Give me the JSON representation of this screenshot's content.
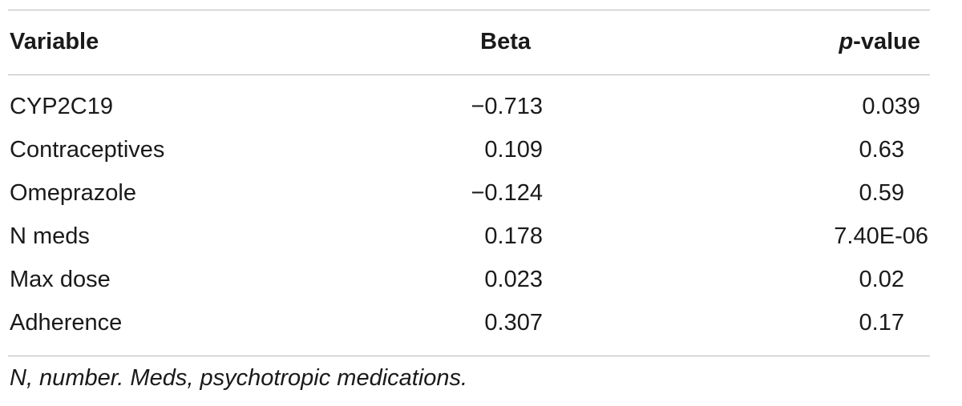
{
  "table": {
    "headers": {
      "variable": "Variable",
      "beta": "Beta",
      "pvalue_italic": "p",
      "pvalue_rest": "-value"
    },
    "rows": [
      {
        "variable": "CYP2C19",
        "beta": "−0.713",
        "pvalue": "0.039"
      },
      {
        "variable": "Contraceptives",
        "beta": "0.109",
        "pvalue": "0.63"
      },
      {
        "variable": "Omeprazole",
        "beta": "−0.124",
        "pvalue": "0.59"
      },
      {
        "variable": "N meds",
        "beta": "0.178",
        "pvalue": "7.40E-06"
      },
      {
        "variable": "Max dose",
        "beta": "0.023",
        "pvalue": "0.02"
      },
      {
        "variable": "Adherence",
        "beta": "0.307",
        "pvalue": "0.17"
      }
    ],
    "footnote": "N, number. Meds, psychotropic medications."
  }
}
